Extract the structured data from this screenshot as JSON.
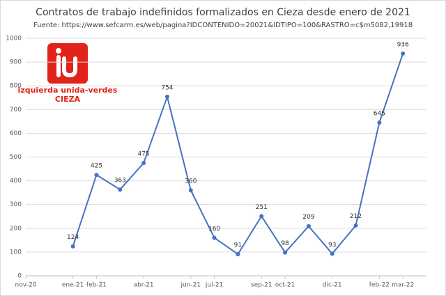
{
  "chart_data": {
    "type": "line",
    "title": "Contratos de trabajo indefinidos formalizados en Cieza desde enero de 2021",
    "subtitle": "Fuente:  https://www.sefcarm.es/web/pagina?IDCONTENIDO=20021&IDTIPO=100&RASTRO=c$m5082,19918",
    "x": [
      "2021-01",
      "2021-02",
      "2021-03",
      "2021-04",
      "2021-05",
      "2021-06",
      "2021-07",
      "2021-08",
      "2021-09",
      "2021-10",
      "2021-11",
      "2021-12",
      "2022-01",
      "2022-02",
      "2022-03"
    ],
    "series": [
      {
        "color": "#4472c4",
        "values": [
          124,
          425,
          363,
          475,
          754,
          360,
          160,
          91,
          251,
          98,
          209,
          93,
          212,
          645,
          936
        ]
      }
    ],
    "xlim": [
      "2020-11",
      "2022-04"
    ],
    "xticks": [
      {
        "value": "2020-11",
        "label": "nov-20"
      },
      {
        "value": "2021-01",
        "label": "ene-21"
      },
      {
        "value": "2021-02",
        "label": "feb-21"
      },
      {
        "value": "2021-04",
        "label": "abr-21"
      },
      {
        "value": "2021-06",
        "label": "jun-21"
      },
      {
        "value": "2021-07",
        "label": "jul-21"
      },
      {
        "value": "2021-09",
        "label": "sep-21"
      },
      {
        "value": "2021-10",
        "label": "oct-21"
      },
      {
        "value": "2021-12",
        "label": "dic-21"
      },
      {
        "value": "2022-02",
        "label": "feb-22"
      },
      {
        "value": "2022-03",
        "label": "mar-22"
      }
    ],
    "ylim": [
      0,
      1000
    ],
    "yticks": [
      0,
      100,
      200,
      300,
      400,
      500,
      600,
      700,
      800,
      900,
      1000
    ],
    "grid": true
  },
  "logo": {
    "lines": [
      "izquierda unida-verdes",
      "CIEZA"
    ]
  }
}
